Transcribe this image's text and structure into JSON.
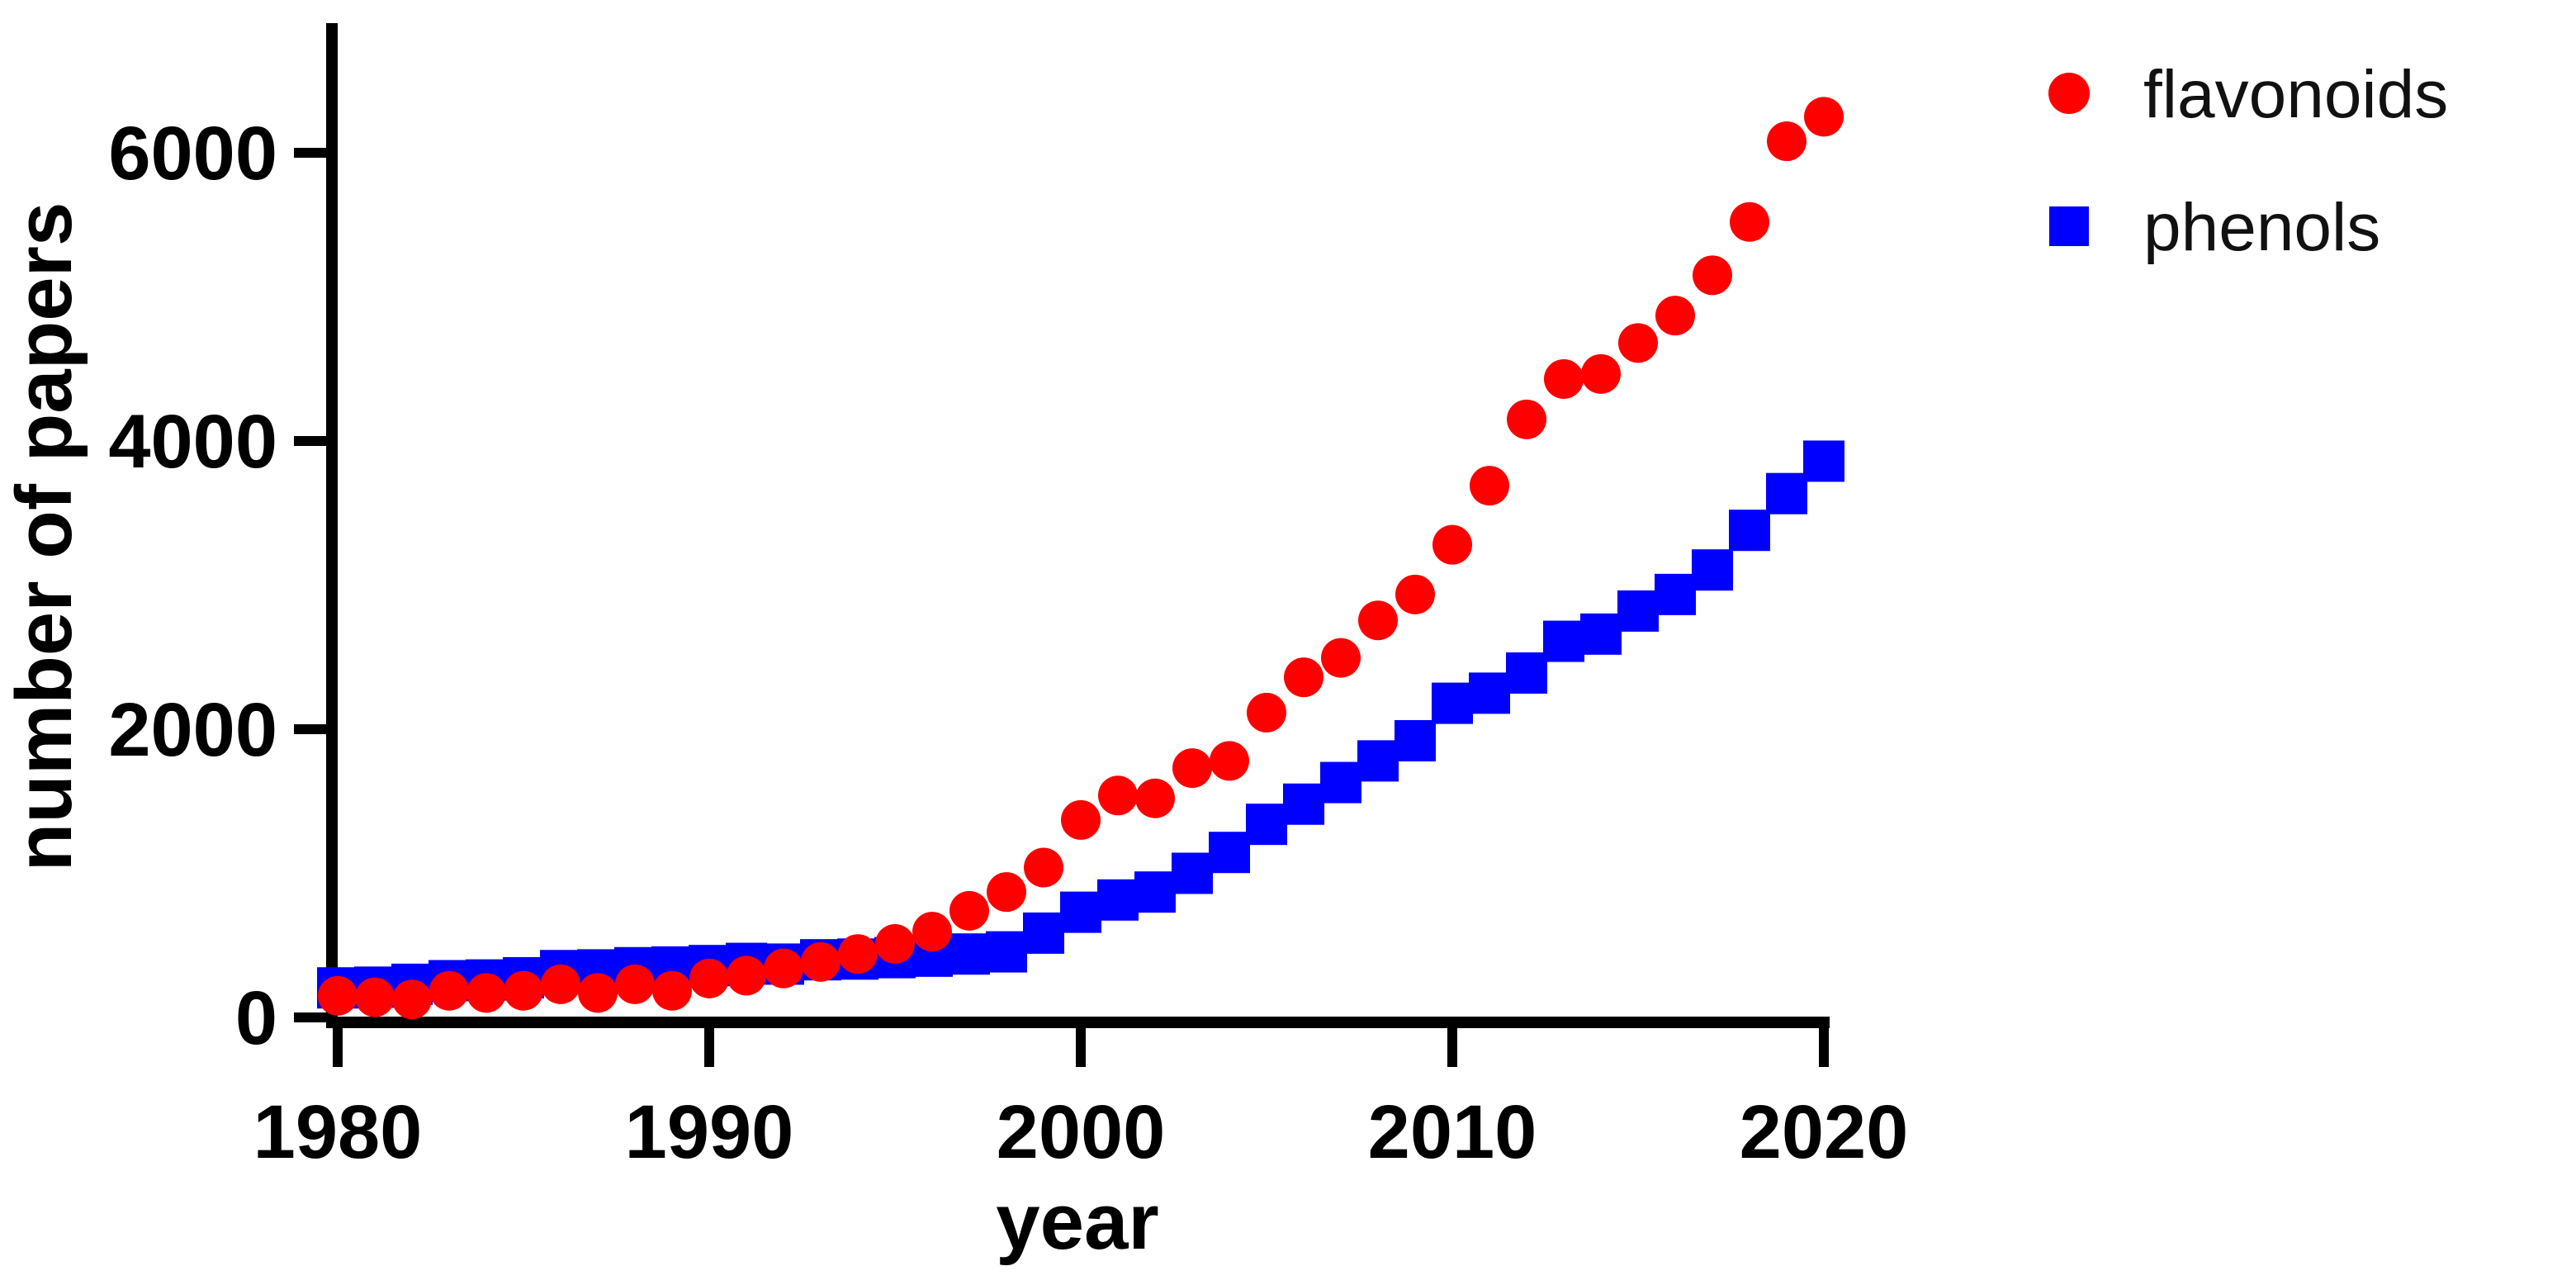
{
  "figure": {
    "background": "#ffffff",
    "axis_color": "#000000",
    "y_axis": {
      "title": "number of papers",
      "tick_labels": [
        "0",
        "2000",
        "4000",
        "6000"
      ]
    },
    "x_axis": {
      "title": "year",
      "tick_labels": [
        "1980",
        "1990",
        "2000",
        "2010",
        "2020"
      ]
    },
    "legend": [
      {
        "label": "flavonoids",
        "marker": "circle-icon",
        "color": "#FF0000"
      },
      {
        "label": "phenols",
        "marker": "square-icon",
        "color": "#0000FF"
      }
    ]
  },
  "chart_data": {
    "type": "scatter",
    "title": "",
    "xlabel": "year",
    "ylabel": "number of papers",
    "xlim": [
      1978.5,
      2021.5
    ],
    "ylim": [
      0,
      6900
    ],
    "grid": false,
    "legend_position": "top-right",
    "x_ticks": [
      1980,
      1990,
      2000,
      2010,
      2020
    ],
    "y_ticks": [
      0,
      2000,
      4000,
      6000
    ],
    "x": [
      1980,
      1981,
      1982,
      1983,
      1984,
      1985,
      1986,
      1987,
      1988,
      1989,
      1990,
      1991,
      1992,
      1993,
      1994,
      1995,
      1996,
      1997,
      1998,
      1999,
      2000,
      2001,
      2002,
      2003,
      2004,
      2005,
      2006,
      2007,
      2008,
      2009,
      2010,
      2011,
      2012,
      2013,
      2014,
      2015,
      2016,
      2017,
      2018,
      2019,
      2020
    ],
    "series": [
      {
        "name": "flavonoids",
        "marker": "circle",
        "color": "#FF0000",
        "values": [
          150,
          140,
          125,
          185,
          170,
          185,
          230,
          170,
          230,
          185,
          270,
          290,
          340,
          385,
          440,
          510,
          595,
          740,
          870,
          1040,
          1370,
          1540,
          1520,
          1730,
          1780,
          2115,
          2360,
          2495,
          2755,
          2935,
          3280,
          3690,
          4150,
          4430,
          4465,
          4680,
          4870,
          5150,
          5520,
          6080,
          6250
        ]
      },
      {
        "name": "phenols",
        "marker": "square",
        "color": "#0000FF",
        "values": [
          205,
          210,
          230,
          255,
          260,
          275,
          325,
          330,
          345,
          350,
          360,
          375,
          370,
          400,
          405,
          415,
          425,
          440,
          455,
          585,
          730,
          815,
          870,
          1000,
          1145,
          1340,
          1480,
          1630,
          1780,
          1920,
          2180,
          2250,
          2390,
          2610,
          2660,
          2820,
          2935,
          3105,
          3380,
          3635,
          3860
        ]
      }
    ]
  }
}
